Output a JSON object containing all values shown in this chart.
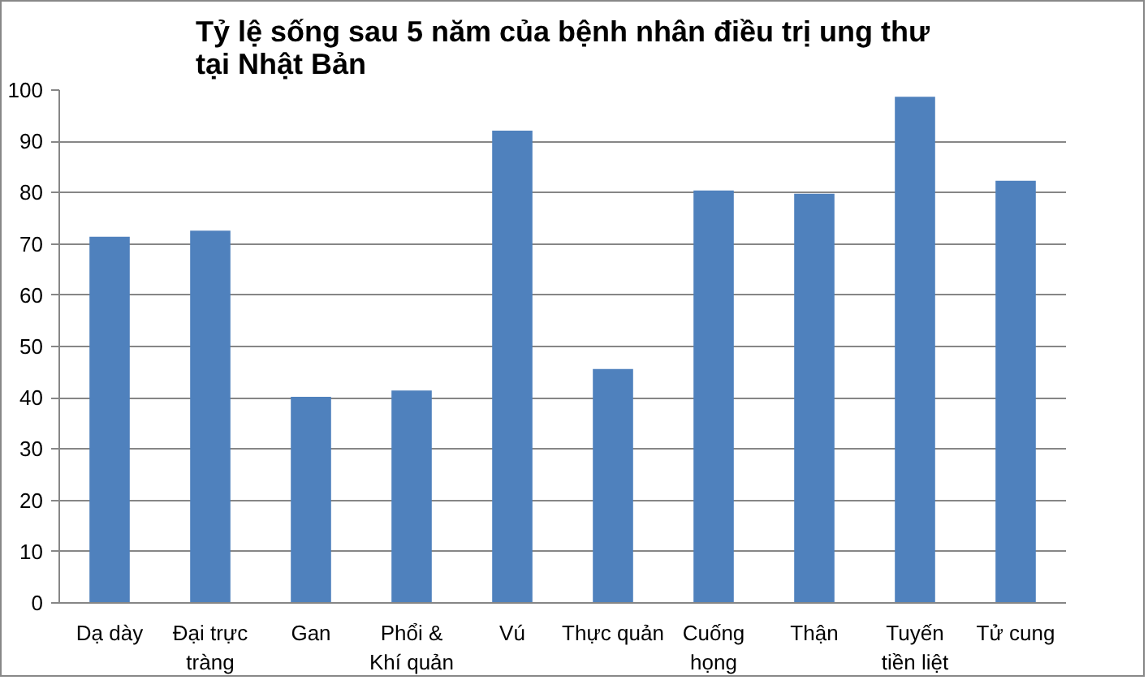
{
  "chart_data": {
    "type": "bar",
    "title": "Tỷ lệ sống sau 5 năm của bệnh nhân điều trị ung thư tại Nhật Bản",
    "categories": [
      "Dạ dày",
      "Đại trực tràng",
      "Gan",
      "Phổi & Khí quản",
      "Vú",
      "Thực quản",
      "Cuống họng",
      "Thận",
      "Tuyến tiền liệt",
      "Tử cung"
    ],
    "values": [
      71.4,
      72.6,
      40.2,
      41.4,
      92.1,
      45.6,
      80.4,
      79.8,
      98.7,
      82.3
    ],
    "color": "#4f81bd",
    "ylim": [
      0,
      100
    ],
    "yticks": [
      0,
      10,
      20,
      30,
      40,
      50,
      60,
      70,
      80,
      90,
      100
    ],
    "grid": "y"
  }
}
